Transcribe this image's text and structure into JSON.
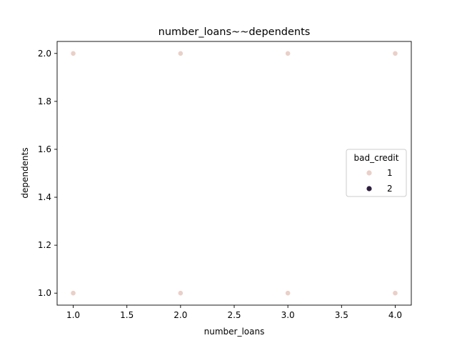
{
  "chart_data": {
    "type": "scatter",
    "title": "number_loans~~dependents",
    "xlabel": "number_loans",
    "ylabel": "dependents",
    "xlim": [
      0.85,
      4.15
    ],
    "ylim": [
      0.95,
      2.05
    ],
    "xticks": [
      "1.0",
      "1.5",
      "2.0",
      "2.5",
      "3.0",
      "3.5",
      "4.0"
    ],
    "yticks": [
      "1.0",
      "1.2",
      "1.4",
      "1.6",
      "1.8",
      "2.0"
    ],
    "grid": false,
    "legend": {
      "title": "bad_credit",
      "placement": "center-right",
      "entries": [
        {
          "label": "1",
          "color": "#ead0c8"
        },
        {
          "label": "2",
          "color": "#2d1e3e"
        }
      ]
    },
    "series": [
      {
        "name": "1",
        "color": "#ead0c8",
        "points": [
          {
            "x": 1.0,
            "y": 2.0
          },
          {
            "x": 2.0,
            "y": 2.0
          },
          {
            "x": 3.0,
            "y": 2.0
          },
          {
            "x": 4.0,
            "y": 2.0
          },
          {
            "x": 1.0,
            "y": 1.0
          },
          {
            "x": 2.0,
            "y": 1.0
          },
          {
            "x": 3.0,
            "y": 1.0
          },
          {
            "x": 4.0,
            "y": 1.0
          }
        ]
      },
      {
        "name": "2",
        "color": "#2d1e3e",
        "points": []
      }
    ]
  }
}
